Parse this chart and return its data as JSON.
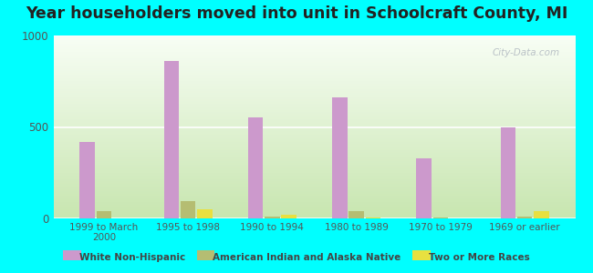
{
  "title": "Year householders moved into unit in Schoolcraft County, MI",
  "categories": [
    "1999 to March\n2000",
    "1995 to 1998",
    "1990 to 1994",
    "1980 to 1989",
    "1970 to 1979",
    "1969 or earlier"
  ],
  "series": {
    "White Non-Hispanic": [
      420,
      860,
      550,
      660,
      330,
      500
    ],
    "American Indian and Alaska Native": [
      38,
      95,
      12,
      40,
      4,
      8
    ],
    "Two or More Races": [
      0,
      48,
      18,
      4,
      0,
      40
    ]
  },
  "colors": {
    "White Non-Hispanic": "#cc99cc",
    "American Indian and Alaska Native": "#b5bd72",
    "Two or More Races": "#e8e040"
  },
  "ylim": [
    0,
    1000
  ],
  "yticks": [
    0,
    500,
    1000
  ],
  "background_color": "#00ffff",
  "watermark": "City-Data.com",
  "bar_width": 0.18,
  "title_fontsize": 12.5
}
